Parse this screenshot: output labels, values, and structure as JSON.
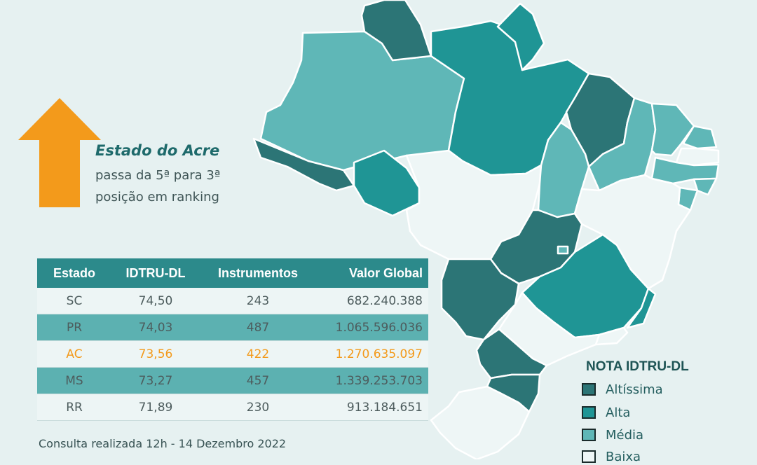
{
  "colors": {
    "background": "#e6f1f1",
    "altissima": "#2c7576",
    "alta": "#1f9595",
    "media": "#5fb7b7",
    "baixa": "#eef6f6",
    "highlight": "#f39a1b",
    "header": "#2c8a8b"
  },
  "callout": {
    "icon": "up-arrow-icon",
    "title": "Estado do Acre",
    "line1": "passa da 5ª para 3ª",
    "line2": "posição em ranking"
  },
  "table": {
    "headers": [
      "Estado",
      "IDTRU-DL",
      "Instrumentos",
      "Valor Global"
    ],
    "rows": [
      {
        "estado": "SC",
        "idtru": "74,50",
        "instrumentos": "243",
        "valor": "682.240.388"
      },
      {
        "estado": "PR",
        "idtru": "74,03",
        "instrumentos": "487",
        "valor": "1.065.596.036"
      },
      {
        "estado": "AC",
        "idtru": "73,56",
        "instrumentos": "422",
        "valor": "1.270.635.097"
      },
      {
        "estado": "MS",
        "idtru": "73,27",
        "instrumentos": "457",
        "valor": "1.339.253.703"
      },
      {
        "estado": "RR",
        "idtru": "71,89",
        "instrumentos": "230",
        "valor": "913.184.651"
      }
    ],
    "highlighted_row": 2
  },
  "footnote": "Consulta realizada 12h - 14 Dezembro 2022",
  "legend": {
    "title": "NOTA IDTRU-DL",
    "items": [
      {
        "label": "Altíssima",
        "color": "#2c7576"
      },
      {
        "label": "Alta",
        "color": "#1f9595"
      },
      {
        "label": "Média",
        "color": "#5fb7b7"
      },
      {
        "label": "Baixa",
        "color": "#eef6f6"
      }
    ]
  },
  "map": {
    "states": [
      {
        "id": "RR",
        "class": "altissima"
      },
      {
        "id": "AP",
        "class": "alta"
      },
      {
        "id": "AM",
        "class": "media"
      },
      {
        "id": "PA",
        "class": "alta"
      },
      {
        "id": "AC",
        "class": "altissima"
      },
      {
        "id": "RO",
        "class": "alta"
      },
      {
        "id": "MT",
        "class": "baixa"
      },
      {
        "id": "MA",
        "class": "altissima"
      },
      {
        "id": "PI",
        "class": "media"
      },
      {
        "id": "CE",
        "class": "media"
      },
      {
        "id": "RN",
        "class": "media"
      },
      {
        "id": "PB",
        "class": "baixa"
      },
      {
        "id": "PE",
        "class": "media"
      },
      {
        "id": "AL",
        "class": "media"
      },
      {
        "id": "SE",
        "class": "media"
      },
      {
        "id": "TO",
        "class": "media"
      },
      {
        "id": "BA",
        "class": "baixa"
      },
      {
        "id": "GO",
        "class": "altissima"
      },
      {
        "id": "DF",
        "class": "media"
      },
      {
        "id": "MG",
        "class": "alta"
      },
      {
        "id": "ES",
        "class": "alta"
      },
      {
        "id": "MS",
        "class": "altissima"
      },
      {
        "id": "SP",
        "class": "baixa"
      },
      {
        "id": "RJ",
        "class": "baixa"
      },
      {
        "id": "PR",
        "class": "altissima"
      },
      {
        "id": "SC",
        "class": "altissima"
      },
      {
        "id": "RS",
        "class": "baixa"
      }
    ]
  }
}
